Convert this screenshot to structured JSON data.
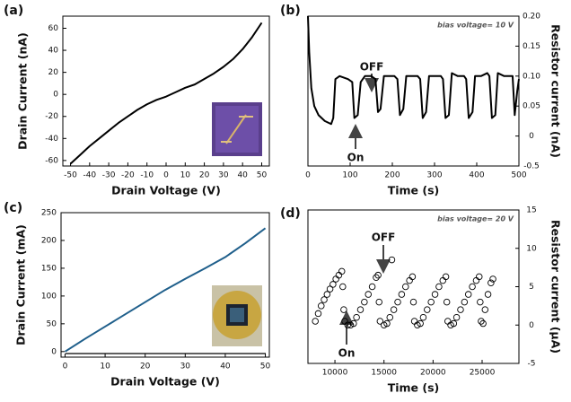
{
  "chart_data": [
    {
      "type": "line",
      "panel": "(a)",
      "x_label": "Drain Voltage (V)",
      "y_label": "Drain Current (nA)",
      "y_axis": "left",
      "color": "#000000",
      "x": [
        -50,
        -45,
        -40,
        -35,
        -30,
        -25,
        -20,
        -15,
        -10,
        -5,
        0,
        5,
        10,
        15,
        20,
        25,
        30,
        35,
        40,
        45,
        50
      ],
      "values": [
        -63,
        -55,
        -47,
        -40,
        -33,
        -26,
        -20,
        -14,
        -9,
        -5,
        -2,
        2,
        6,
        9,
        14,
        19,
        25,
        32,
        41,
        52,
        65
      ],
      "xlim": [
        -54,
        54
      ],
      "ylim": [
        -65,
        71
      ],
      "xticks": [
        -50,
        -40,
        -30,
        -20,
        -10,
        0,
        10,
        20,
        30,
        40,
        50
      ],
      "yticks": [
        -60,
        -40,
        -20,
        0,
        20,
        40,
        60
      ]
    },
    {
      "type": "line",
      "panel": "(b)",
      "x_label": "Time (s)",
      "y_label": "Resistor current (nA)",
      "y_axis": "right",
      "color": "#000000",
      "note": "bias voltage= 10 V",
      "off_label": "OFF",
      "on_label": "On",
      "x": [
        0,
        3,
        8,
        15,
        25,
        40,
        55,
        60,
        65,
        75,
        95,
        105,
        110,
        118,
        125,
        135,
        150,
        160,
        166,
        172,
        180,
        190,
        205,
        212,
        218,
        226,
        233,
        245,
        260,
        266,
        272,
        280,
        287,
        300,
        315,
        320,
        326,
        334,
        341,
        355,
        370,
        375,
        381,
        390,
        396,
        410,
        425,
        430,
        436,
        444,
        450,
        465,
        480,
        485,
        490,
        496,
        500
      ],
      "values": [
        0.2,
        0.14,
        0.08,
        0.05,
        0.035,
        0.025,
        0.02,
        0.03,
        0.095,
        0.1,
        0.095,
        0.09,
        0.03,
        0.035,
        0.09,
        0.1,
        0.1,
        0.095,
        0.04,
        0.045,
        0.1,
        0.1,
        0.1,
        0.095,
        0.035,
        0.045,
        0.1,
        0.1,
        0.1,
        0.095,
        0.03,
        0.04,
        0.1,
        0.1,
        0.1,
        0.095,
        0.03,
        0.035,
        0.105,
        0.1,
        0.1,
        0.095,
        0.03,
        0.04,
        0.1,
        0.1,
        0.105,
        0.1,
        0.03,
        0.035,
        0.105,
        0.1,
        0.1,
        0.1,
        0.035,
        0.075,
        0.095
      ],
      "xlim": [
        0,
        500
      ],
      "ylim": [
        -0.05,
        0.2
      ],
      "xticks": [
        0,
        100,
        200,
        300,
        400,
        500
      ],
      "yticks": [
        {
          "value": 0.2,
          "label": "0.20"
        },
        0.15,
        {
          "value": 0.1,
          "label": "0.10"
        },
        0.05,
        0,
        {
          "value": -0.05,
          "label": "-0.5"
        }
      ]
    },
    {
      "type": "line",
      "panel": "(c)",
      "x_label": "Drain Voltage (V)",
      "y_label": "Drain Current (mA)",
      "y_axis": "left",
      "color": "#1f5f8b",
      "x": [
        0,
        5,
        10,
        15,
        20,
        25,
        30,
        35,
        40,
        45,
        50
      ],
      "values": [
        0,
        23,
        45,
        67,
        89,
        111,
        131,
        150,
        170,
        195,
        222
      ],
      "xlim": [
        -1,
        51
      ],
      "ylim": [
        -10,
        250
      ],
      "xticks": [
        0,
        10,
        20,
        30,
        40,
        50
      ],
      "yticks": [
        0,
        50,
        100,
        150,
        200,
        250
      ]
    },
    {
      "type": "scatter",
      "panel": "(d)",
      "x_label": "Time (s)",
      "y_label": "Resistor current (μA)",
      "y_axis": "right",
      "color": "#000000",
      "note": "bias voltage= 20 V",
      "off_label": "OFF",
      "on_label": "On",
      "x": [
        8000,
        8300,
        8600,
        8900,
        9200,
        9500,
        9800,
        10100,
        10400,
        10700,
        10800,
        10900,
        11000,
        11300,
        11600,
        11900,
        12200,
        12600,
        13000,
        13400,
        13800,
        14200,
        14400,
        14500,
        14600,
        15000,
        15300,
        15800,
        15600,
        16000,
        16400,
        16800,
        17200,
        17600,
        17900,
        18000,
        18100,
        18400,
        18700,
        19000,
        19400,
        19800,
        20200,
        20600,
        21000,
        21300,
        21400,
        21500,
        21800,
        22100,
        22400,
        22800,
        23200,
        23600,
        24000,
        24400,
        24700,
        24800,
        24900,
        25100,
        25300,
        25600,
        25900,
        26100
      ],
      "values": [
        0.5,
        1.5,
        2.5,
        3.3,
        4.0,
        4.7,
        5.3,
        6.0,
        6.5,
        7.0,
        5,
        2,
        0.5,
        0,
        0,
        0.2,
        1,
        2,
        3,
        4,
        5,
        6.2,
        6.5,
        3,
        0.5,
        0,
        0.2,
        8.5,
        1,
        2,
        3,
        4,
        5,
        5.8,
        6.3,
        3,
        0.5,
        0,
        0.2,
        1,
        2,
        3,
        4,
        5,
        5.8,
        6.3,
        3,
        0.5,
        0,
        0.2,
        1,
        2,
        3,
        4,
        5,
        5.8,
        6.3,
        3,
        0.5,
        0.2,
        2,
        4,
        5.5,
        6
      ],
      "xlim": [
        7250,
        28750
      ],
      "ylim": [
        -5,
        15
      ],
      "xticks": [
        10000,
        15000,
        20000,
        25000
      ],
      "yticks": [
        -5,
        0,
        5,
        10,
        15
      ]
    }
  ]
}
